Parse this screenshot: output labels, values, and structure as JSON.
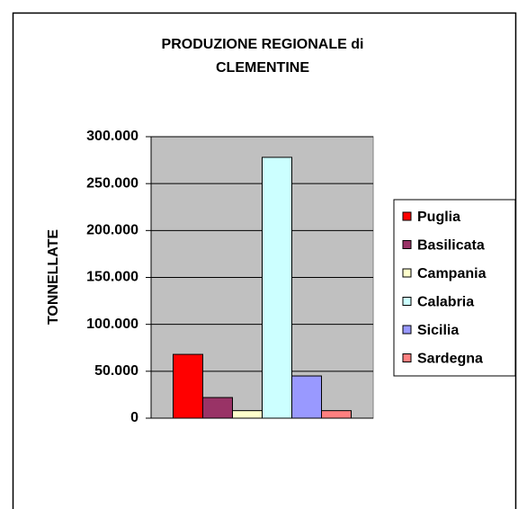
{
  "chart_data": {
    "type": "bar",
    "title": [
      "PRODUZIONE REGIONALE di",
      "CLEMENTINE"
    ],
    "y_label": "TONNELLATE",
    "series": [
      {
        "name": "Puglia",
        "color": "#ff0000",
        "values": [
          68000
        ]
      },
      {
        "name": "Basilicata",
        "color": "#993366",
        "values": [
          22000
        ]
      },
      {
        "name": "Campania",
        "color": "#ffffcc",
        "values": [
          8000
        ]
      },
      {
        "name": "Calabria",
        "color": "#ccffff",
        "values": [
          278000
        ]
      },
      {
        "name": "Sicilia",
        "color": "#9999ff",
        "values": [
          45000
        ]
      },
      {
        "name": "Sardegna",
        "color": "#ff8080",
        "values": [
          8000
        ]
      }
    ],
    "ylim": [
      0,
      300000
    ],
    "yticks": [
      0,
      {
        "value": 50000,
        "label": "50.000"
      },
      {
        "value": 100000,
        "label": "100.000"
      },
      {
        "value": 150000,
        "label": "150.000"
      },
      {
        "value": 200000,
        "label": "200.000"
      },
      {
        "value": 250000,
        "label": "250.000"
      },
      {
        "value": 300000,
        "label": "300.000"
      }
    ],
    "grid": true,
    "plot_background": "#c0c0c0",
    "legend": "right"
  }
}
